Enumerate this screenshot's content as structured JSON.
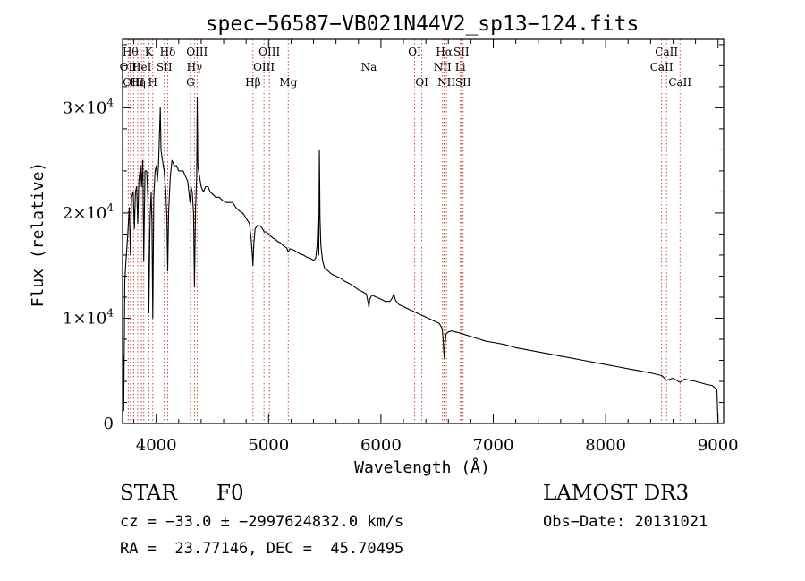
{
  "chart_data": {
    "type": "line",
    "title": "spec−56587−VB021N44V2_sp13−124.fits",
    "xlabel": "Wavelength (Å)",
    "ylabel": "Flux (relative)",
    "xlim": [
      3700,
      9050
    ],
    "ylim": [
      0,
      36500
    ],
    "xticks": [
      {
        "value": 4000,
        "label": "4000"
      },
      {
        "value": 5000,
        "label": "5000"
      },
      {
        "value": 6000,
        "label": "6000"
      },
      {
        "value": 7000,
        "label": "7000"
      },
      {
        "value": 8000,
        "label": "8000"
      },
      {
        "value": 9000,
        "label": "9000"
      }
    ],
    "yticks": [
      {
        "value": 0,
        "mantissa": "0",
        "exponent": ""
      },
      {
        "value": 10000,
        "mantissa": "1×10",
        "exponent": "4"
      },
      {
        "value": 20000,
        "mantissa": "2×10",
        "exponent": "4"
      },
      {
        "value": 30000,
        "mantissa": "3×10",
        "exponent": "4"
      }
    ],
    "lines": [
      {
        "wavelength": 3750,
        "label": "OII",
        "row": 1
      },
      {
        "wavelength": 3770,
        "label": "Hθ",
        "row": 0
      },
      {
        "wavelength": 3798,
        "label": "OIII",
        "row": 2
      },
      {
        "wavelength": 3835,
        "label": "Hη",
        "row": 2
      },
      {
        "wavelength": 3869,
        "label": "HeI",
        "row": 1
      },
      {
        "wavelength": 3889,
        "label": "",
        "row": 1
      },
      {
        "wavelength": 3934,
        "label": "K",
        "row": 0
      },
      {
        "wavelength": 3969,
        "label": "H",
        "row": 2
      },
      {
        "wavelength": 4072,
        "label": "SII",
        "row": 1
      },
      {
        "wavelength": 4102,
        "label": "Hδ",
        "row": 0
      },
      {
        "wavelength": 4304,
        "label": "G",
        "row": 2
      },
      {
        "wavelength": 4340,
        "label": "Hγ",
        "row": 1
      },
      {
        "wavelength": 4363,
        "label": "OIII",
        "row": 0
      },
      {
        "wavelength": 4861,
        "label": "Hβ",
        "row": 2
      },
      {
        "wavelength": 4959,
        "label": "OIII",
        "row": 1
      },
      {
        "wavelength": 5007,
        "label": "OIII",
        "row": 0
      },
      {
        "wavelength": 5175,
        "label": "Mg",
        "row": 2
      },
      {
        "wavelength": 5893,
        "label": "Na",
        "row": 1
      },
      {
        "wavelength": 6300,
        "label": "OI",
        "row": 0
      },
      {
        "wavelength": 6364,
        "label": "OI",
        "row": 2
      },
      {
        "wavelength": 6548,
        "label": "NII",
        "row": 1
      },
      {
        "wavelength": 6563,
        "label": "Hα",
        "row": 0
      },
      {
        "wavelength": 6583,
        "label": "NII",
        "row": 2
      },
      {
        "wavelength": 6707,
        "label": "Li",
        "row": 1
      },
      {
        "wavelength": 6716,
        "label": "SII",
        "row": 0
      },
      {
        "wavelength": 6731,
        "label": "SII",
        "row": 2
      },
      {
        "wavelength": 8498,
        "label": "CaII",
        "row": 1
      },
      {
        "wavelength": 8542,
        "label": "CaII",
        "row": 0
      },
      {
        "wavelength": 8662,
        "label": "CaII",
        "row": 2
      }
    ],
    "series": [
      {
        "name": "flux",
        "points": [
          [
            3700,
            0
          ],
          [
            3705,
            6500
          ],
          [
            3710,
            1200
          ],
          [
            3720,
            13500
          ],
          [
            3730,
            15500
          ],
          [
            3745,
            17800
          ],
          [
            3760,
            20500
          ],
          [
            3770,
            16000
          ],
          [
            3780,
            21500
          ],
          [
            3795,
            22000
          ],
          [
            3805,
            18500
          ],
          [
            3815,
            22000
          ],
          [
            3825,
            22500
          ],
          [
            3835,
            19000
          ],
          [
            3845,
            23000
          ],
          [
            3860,
            24500
          ],
          [
            3869,
            22500
          ],
          [
            3880,
            25000
          ],
          [
            3889,
            15500
          ],
          [
            3900,
            24000
          ],
          [
            3915,
            24000
          ],
          [
            3925,
            21500
          ],
          [
            3934,
            10500
          ],
          [
            3945,
            19500
          ],
          [
            3955,
            22000
          ],
          [
            3962,
            19000
          ],
          [
            3969,
            10000
          ],
          [
            3978,
            21500
          ],
          [
            3990,
            24000
          ],
          [
            4000,
            24500
          ],
          [
            4010,
            23000
          ],
          [
            4020,
            24500
          ],
          [
            4030,
            28000
          ],
          [
            4036,
            30000
          ],
          [
            4042,
            26000
          ],
          [
            4055,
            25000
          ],
          [
            4070,
            24000
          ],
          [
            4085,
            22000
          ],
          [
            4095,
            19500
          ],
          [
            4102,
            14500
          ],
          [
            4110,
            20000
          ],
          [
            4125,
            23500
          ],
          [
            4140,
            25000
          ],
          [
            4160,
            24500
          ],
          [
            4180,
            24500
          ],
          [
            4200,
            24000
          ],
          [
            4220,
            24000
          ],
          [
            4240,
            24000
          ],
          [
            4260,
            23500
          ],
          [
            4280,
            23000
          ],
          [
            4300,
            21000
          ],
          [
            4310,
            22500
          ],
          [
            4320,
            22000
          ],
          [
            4332,
            20000
          ],
          [
            4340,
            13000
          ],
          [
            4350,
            20500
          ],
          [
            4360,
            23500
          ],
          [
            4365,
            31000
          ],
          [
            4370,
            24500
          ],
          [
            4385,
            23500
          ],
          [
            4400,
            22500
          ],
          [
            4420,
            22000
          ],
          [
            4440,
            22500
          ],
          [
            4460,
            22500
          ],
          [
            4480,
            22000
          ],
          [
            4500,
            21800
          ],
          [
            4530,
            21500
          ],
          [
            4560,
            21500
          ],
          [
            4590,
            21200
          ],
          [
            4620,
            21000
          ],
          [
            4650,
            21000
          ],
          [
            4680,
            21000
          ],
          [
            4710,
            20500
          ],
          [
            4740,
            20200
          ],
          [
            4770,
            20000
          ],
          [
            4800,
            19500
          ],
          [
            4830,
            19000
          ],
          [
            4845,
            17500
          ],
          [
            4855,
            16000
          ],
          [
            4861,
            15000
          ],
          [
            4868,
            17000
          ],
          [
            4880,
            18500
          ],
          [
            4900,
            18800
          ],
          [
            4920,
            18800
          ],
          [
            4940,
            18600
          ],
          [
            4960,
            18200
          ],
          [
            4980,
            18200
          ],
          [
            5000,
            18000
          ],
          [
            5020,
            17800
          ],
          [
            5040,
            17600
          ],
          [
            5060,
            17500
          ],
          [
            5080,
            17300
          ],
          [
            5100,
            17200
          ],
          [
            5130,
            16900
          ],
          [
            5160,
            16700
          ],
          [
            5175,
            16300
          ],
          [
            5190,
            16600
          ],
          [
            5220,
            16500
          ],
          [
            5250,
            16300
          ],
          [
            5280,
            16100
          ],
          [
            5310,
            16000
          ],
          [
            5340,
            15800
          ],
          [
            5370,
            15700
          ],
          [
            5400,
            15500
          ],
          [
            5420,
            15700
          ],
          [
            5432,
            17000
          ],
          [
            5440,
            19500
          ],
          [
            5447,
            16000
          ],
          [
            5452,
            26000
          ],
          [
            5458,
            19500
          ],
          [
            5465,
            17000
          ],
          [
            5480,
            15500
          ],
          [
            5500,
            14700
          ],
          [
            5530,
            14500
          ],
          [
            5560,
            14200
          ],
          [
            5600,
            14000
          ],
          [
            5640,
            13800
          ],
          [
            5680,
            13500
          ],
          [
            5720,
            13300
          ],
          [
            5760,
            13000
          ],
          [
            5800,
            12700
          ],
          [
            5840,
            12500
          ],
          [
            5870,
            12300
          ],
          [
            5885,
            11500
          ],
          [
            5893,
            11000
          ],
          [
            5900,
            11800
          ],
          [
            5920,
            12200
          ],
          [
            5960,
            12000
          ],
          [
            6000,
            11800
          ],
          [
            6040,
            11600
          ],
          [
            6080,
            11600
          ],
          [
            6100,
            11900
          ],
          [
            6115,
            12300
          ],
          [
            6130,
            11700
          ],
          [
            6160,
            11300
          ],
          [
            6200,
            11100
          ],
          [
            6240,
            10900
          ],
          [
            6280,
            10700
          ],
          [
            6320,
            10500
          ],
          [
            6360,
            10300
          ],
          [
            6400,
            10100
          ],
          [
            6440,
            9900
          ],
          [
            6480,
            9700
          ],
          [
            6520,
            9500
          ],
          [
            6545,
            9000
          ],
          [
            6555,
            7800
          ],
          [
            6563,
            6200
          ],
          [
            6570,
            7500
          ],
          [
            6580,
            8500
          ],
          [
            6600,
            8700
          ],
          [
            6630,
            8800
          ],
          [
            6660,
            8700
          ],
          [
            6700,
            8600
          ],
          [
            6760,
            8400
          ],
          [
            6820,
            8200
          ],
          [
            6880,
            8000
          ],
          [
            6940,
            7800
          ],
          [
            7000,
            7700
          ],
          [
            7100,
            7500
          ],
          [
            7200,
            7200
          ],
          [
            7300,
            7000
          ],
          [
            7400,
            6800
          ],
          [
            7500,
            6600
          ],
          [
            7600,
            6400
          ],
          [
            7700,
            6200
          ],
          [
            7800,
            6000
          ],
          [
            7900,
            5800
          ],
          [
            8000,
            5600
          ],
          [
            8100,
            5400
          ],
          [
            8200,
            5200
          ],
          [
            8300,
            5000
          ],
          [
            8400,
            4800
          ],
          [
            8500,
            4550
          ],
          [
            8542,
            4100
          ],
          [
            8600,
            4300
          ],
          [
            8662,
            3900
          ],
          [
            8700,
            4200
          ],
          [
            8800,
            4000
          ],
          [
            8900,
            3700
          ],
          [
            8950,
            3600
          ],
          [
            8990,
            3200
          ],
          [
            9000,
            0
          ]
        ]
      }
    ]
  },
  "info": {
    "object_class": "STAR",
    "subclass": "F0",
    "survey": "LAMOST DR3",
    "cz_line": "cz = −33.0 ± −2997624832.0 km/s",
    "obs_date_line": "Obs−Date: 20131021",
    "coords_line": "RA =  23.77146, DEC =  45.70495"
  }
}
